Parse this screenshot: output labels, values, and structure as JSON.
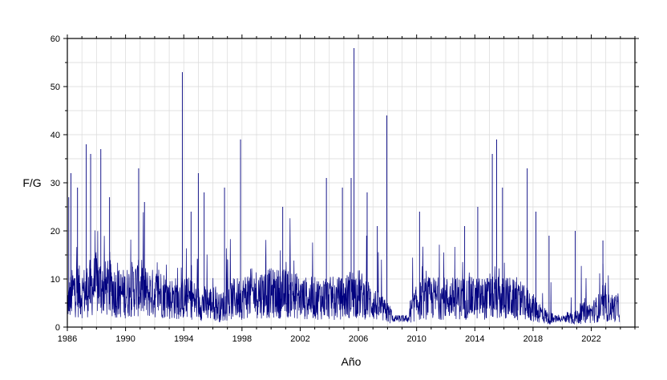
{
  "chart_data": {
    "type": "line",
    "title": "",
    "xlabel": "Año",
    "ylabel": "F/G",
    "xlim": [
      1986,
      2025
    ],
    "ylim": [
      0,
      60
    ],
    "x_ticks": [
      1986,
      1990,
      1994,
      1998,
      2002,
      2006,
      2010,
      2014,
      2018,
      2022
    ],
    "y_ticks": [
      0,
      10,
      20,
      30,
      40,
      50,
      60
    ],
    "grid": true,
    "legend": "none",
    "colors": {
      "series": "#00007F",
      "grid": "#d9d9d9",
      "axis": "#000000"
    },
    "series": [
      {
        "x": [
          1986.0,
          1986.5,
          1987.0,
          1987.5,
          1988.0,
          1988.5,
          1989.0,
          1989.5,
          1990.0,
          1990.5,
          1991.0,
          1991.5,
          1992.0,
          1992.5,
          1993.0,
          1993.5,
          1994.0,
          1994.5,
          1995.0,
          1995.5,
          1996.0,
          1996.5,
          1997.0,
          1997.5,
          1998.0,
          1998.5,
          1999.0,
          1999.5,
          2000.0,
          2000.5,
          2001.0,
          2001.5,
          2002.0,
          2002.5,
          2003.0,
          2003.5,
          2004.0,
          2004.5,
          2005.0,
          2005.5,
          2006.0,
          2006.5,
          2007.0,
          2007.5,
          2008.0,
          2008.5,
          2009.0,
          2009.5,
          2010.0,
          2010.5,
          2011.0,
          2011.5,
          2012.0,
          2012.5,
          2013.0,
          2013.5,
          2014.0,
          2014.5,
          2015.0,
          2015.5,
          2016.0,
          2016.5,
          2017.0,
          2017.5,
          2018.0,
          2018.5,
          2019.0,
          2019.5,
          2020.0,
          2020.5,
          2021.0,
          2021.5,
          2022.0,
          2022.5,
          2023.0,
          2023.5,
          2024.0
        ],
        "values": [
          5,
          8,
          7,
          8,
          9,
          8,
          8,
          7,
          7,
          8,
          8,
          7,
          7,
          7,
          6,
          6,
          6,
          6,
          5,
          5,
          5,
          4,
          5,
          6,
          6,
          7,
          7,
          7,
          7,
          7,
          7,
          7,
          6,
          6,
          6,
          6,
          6,
          6,
          6,
          7,
          7,
          6,
          5,
          4,
          3,
          2,
          2,
          3,
          5,
          6,
          6,
          6,
          6,
          6,
          6,
          6,
          6,
          6,
          6,
          6,
          6,
          6,
          5,
          5,
          4,
          3,
          2,
          1.5,
          2,
          2,
          2,
          3,
          3,
          4,
          4,
          4,
          4
        ]
      }
    ],
    "peaks": [
      {
        "x": 1986.1,
        "y": 27
      },
      {
        "x": 1986.25,
        "y": 32
      },
      {
        "x": 1986.7,
        "y": 29
      },
      {
        "x": 1987.3,
        "y": 38
      },
      {
        "x": 1987.6,
        "y": 36
      },
      {
        "x": 1988.3,
        "y": 37
      },
      {
        "x": 1988.9,
        "y": 27
      },
      {
        "x": 1990.9,
        "y": 33
      },
      {
        "x": 1991.3,
        "y": 26
      },
      {
        "x": 1993.9,
        "y": 53
      },
      {
        "x": 1994.5,
        "y": 24
      },
      {
        "x": 1995.0,
        "y": 32
      },
      {
        "x": 1995.4,
        "y": 28
      },
      {
        "x": 1996.8,
        "y": 29
      },
      {
        "x": 1997.9,
        "y": 39
      },
      {
        "x": 2000.8,
        "y": 25
      },
      {
        "x": 2003.8,
        "y": 31
      },
      {
        "x": 2004.9,
        "y": 29
      },
      {
        "x": 2005.5,
        "y": 31
      },
      {
        "x": 2005.7,
        "y": 58
      },
      {
        "x": 2006.6,
        "y": 28
      },
      {
        "x": 2007.3,
        "y": 21
      },
      {
        "x": 2007.95,
        "y": 44
      },
      {
        "x": 2010.2,
        "y": 24
      },
      {
        "x": 2013.3,
        "y": 21
      },
      {
        "x": 2014.2,
        "y": 25
      },
      {
        "x": 2015.2,
        "y": 36
      },
      {
        "x": 2015.5,
        "y": 39
      },
      {
        "x": 2015.9,
        "y": 29
      },
      {
        "x": 2017.6,
        "y": 33
      },
      {
        "x": 2018.2,
        "y": 24
      },
      {
        "x": 2019.1,
        "y": 19
      },
      {
        "x": 2020.9,
        "y": 20
      },
      {
        "x": 2022.8,
        "y": 18
      }
    ]
  }
}
